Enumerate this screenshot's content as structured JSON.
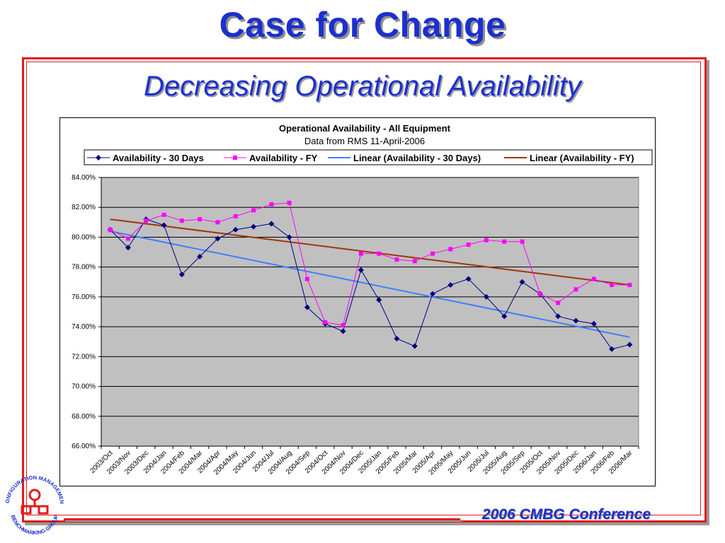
{
  "slide": {
    "title": "Case for Change",
    "subtitle": "Decreasing Operational Availability",
    "footer": "2006 CMBG Conference",
    "logo_text_top": "CONFIGURATION MANAGEMENT",
    "logo_text_bottom": "BENCHMARKING GROUP",
    "colors": {
      "title": "#1b2fd0",
      "frame": "#e01b1b",
      "logo": "#e01b1b"
    }
  },
  "chart_data": {
    "type": "line",
    "title": "Operational Availability - All Equipment",
    "subtitle": "Data from RMS 11-April-2006",
    "legend_position": "top",
    "grid": true,
    "plot_background": "#c0c0c0",
    "ylim": [
      0.66,
      0.84
    ],
    "yticks": [
      "84.00%",
      "82.00%",
      "80.00%",
      "78.00%",
      "76.00%",
      "74.00%",
      "72.00%",
      "70.00%",
      "68.00%",
      "66.00%"
    ],
    "ytick_values": [
      0.84,
      0.82,
      0.8,
      0.78,
      0.76,
      0.74,
      0.72,
      0.7,
      0.68,
      0.66
    ],
    "categories": [
      "2003/Oct",
      "2003/Nov",
      "2003/Dec",
      "2004/Jan",
      "2004/Feb",
      "2004/Mar",
      "2004/Apr",
      "2004/May",
      "2004/Jun",
      "2004/Jul",
      "2004/Aug",
      "2004/Sep",
      "2004/Oct",
      "2004/Nov",
      "2004/Dec",
      "2005/Jan",
      "2005/Feb",
      "2005/Mar",
      "2005/Apr",
      "2005/May",
      "2005/Jun",
      "2005/Jul",
      "2005/Aug",
      "2005/Sep",
      "2005/Oct",
      "2005/Nov",
      "2005/Dec",
      "2006/Jan",
      "2006/Feb",
      "2006/Mar"
    ],
    "series": [
      {
        "name": "Availability - 30 Days",
        "color": "#000080",
        "marker": "diamond",
        "values": [
          0.805,
          0.793,
          0.812,
          0.808,
          0.775,
          0.787,
          0.799,
          0.805,
          0.807,
          0.809,
          0.8,
          0.753,
          0.742,
          0.737,
          0.778,
          0.758,
          0.732,
          0.727,
          0.762,
          0.768,
          0.772,
          0.76,
          0.747,
          0.77,
          0.762,
          0.747,
          0.744,
          0.742,
          0.725,
          0.728
        ]
      },
      {
        "name": "Availability - FY",
        "color": "#ff00ff",
        "marker": "square",
        "values": [
          0.805,
          0.799,
          0.811,
          0.815,
          0.811,
          0.812,
          0.81,
          0.814,
          0.818,
          0.822,
          0.823,
          0.772,
          0.743,
          0.741,
          0.789,
          0.789,
          0.785,
          0.784,
          0.789,
          0.792,
          0.795,
          0.798,
          0.797,
          0.797,
          0.762,
          0.756,
          0.765,
          0.772,
          0.768,
          0.768
        ]
      },
      {
        "name": "Linear (Availability - 30 Days)",
        "color": "#3f7fff",
        "marker": "none",
        "trend": [
          0.804,
          0.733
        ]
      },
      {
        "name": "Linear (Availability - FY)",
        "color": "#a0350a",
        "marker": "none",
        "trend": [
          0.812,
          0.768
        ]
      }
    ]
  }
}
